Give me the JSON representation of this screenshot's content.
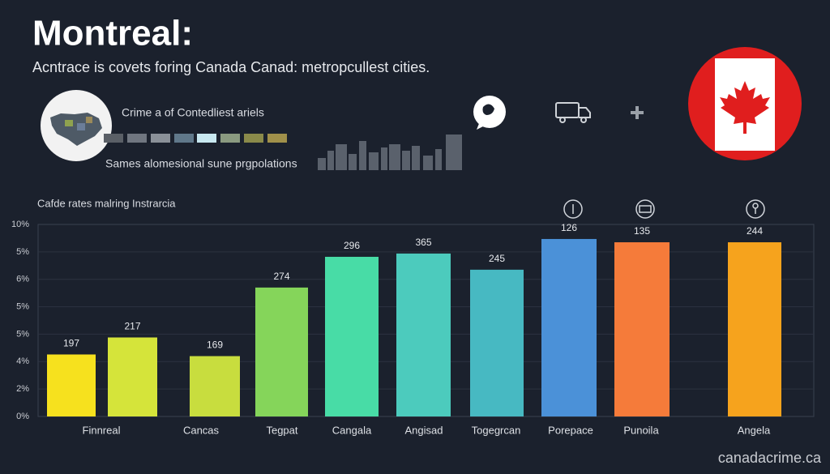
{
  "header": {
    "title": "Montreal:",
    "subtitle": "Acntrace is covets foring Canada Canad: metropcullest cities.",
    "legend_title": "Crime a of Contedliest ariels",
    "legend_caption": "Sames alomesional sune prgpolations",
    "footer": "canadacrime.ca"
  },
  "chart_data": {
    "type": "bar",
    "title": "Cafde rates malring Instrarcia",
    "categories": [
      "Finnreal",
      null,
      "Cancas",
      "Tegpat",
      "Cangala",
      "Angisad",
      "Togegrcan",
      "Porepace",
      "Punoila",
      "Angela"
    ],
    "values": [
      2.26,
      2.88,
      2.2,
      4.7,
      5.82,
      5.94,
      5.35,
      6.47,
      6.35,
      6.35
    ],
    "bar_labels": [
      "197",
      "217",
      "169",
      "274",
      "296",
      "365",
      "245",
      "126",
      "135",
      "244"
    ],
    "colors": [
      "#f6e11e",
      "#d5e43a",
      "#c8dd3e",
      "#85d55a",
      "#48dca6",
      "#4ccbbd",
      "#47b9c2",
      "#4b91d8",
      "#f57b3a",
      "#f6a31d"
    ],
    "ylim": [
      0,
      7
    ],
    "y_labels": [
      "0%",
      "2%",
      "4%",
      "5%",
      "5%",
      "6%",
      "5%",
      "10%"
    ],
    "grid": true
  }
}
